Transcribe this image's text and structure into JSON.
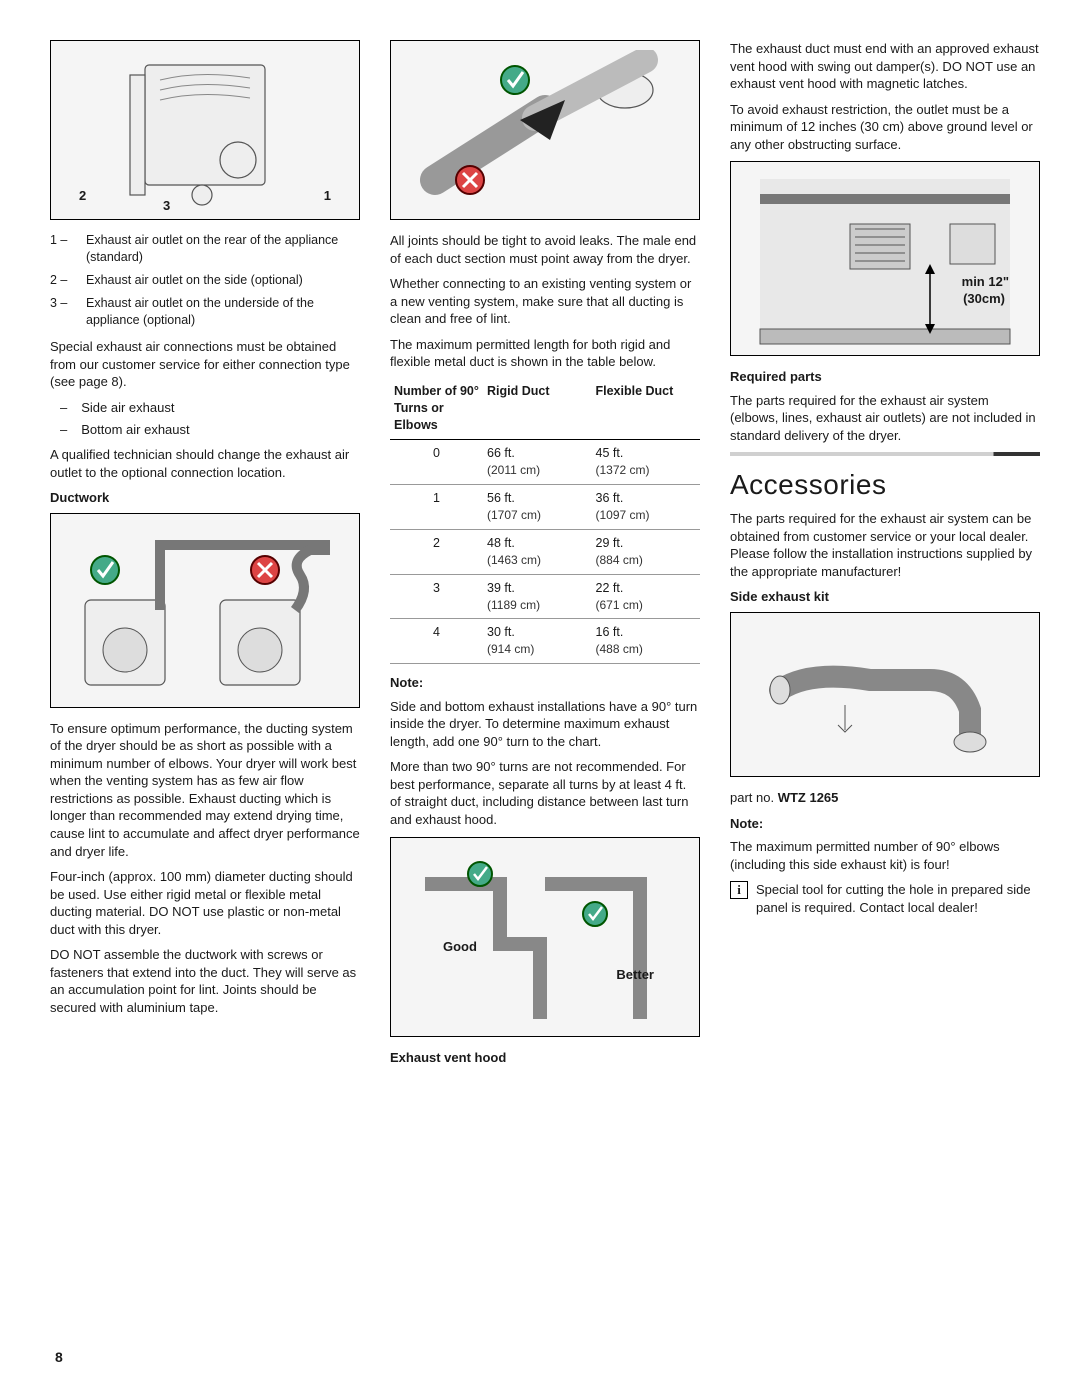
{
  "col1": {
    "fig1": {
      "labels": [
        "2",
        "3",
        "1"
      ]
    },
    "legend": [
      {
        "n": "1 –",
        "t": "Exhaust air outlet on the rear of the appliance (standard)"
      },
      {
        "n": "2 –",
        "t": "Exhaust air outlet on the side (optional)"
      },
      {
        "n": "3 –",
        "t": "Exhaust air outlet on the underside of the appliance (optional)"
      }
    ],
    "p1": "Special exhaust air connections must be obtained from our customer service for either connection type (see page 8).",
    "dash": [
      "Side air exhaust",
      "Bottom air exhaust"
    ],
    "p2": "A qualified technician should change the exhaust air outlet to the optional connection location.",
    "h_duct": "Ductwork",
    "p3": "To ensure optimum performance, the ducting system of the dryer should be as short as possible with a minimum number of elbows. Your dryer will work best when the venting system has as few air flow restrictions as possible. Exhaust ducting which is longer than recommended may extend drying time, cause lint to accumulate and affect dryer performance and dryer life.",
    "p4": "Four-inch (approx. 100 mm) diameter ducting should be used. Use either rigid metal or flexible metal ducting material. DO NOT use plastic or non-metal duct with this dryer.",
    "p5": "DO NOT assemble the ductwork with screws or fasteners that extend into the duct. They will serve as an accumulation point for lint. Joints should be secured with aluminium tape."
  },
  "col2": {
    "p1": "All joints should be tight to avoid leaks. The male end of each duct section must point away from the dryer.",
    "p2": "Whether connecting to an existing venting system or a new venting system, make sure that all ducting is clean and free of lint.",
    "p3": "The maximum permitted length for both rigid and flexible metal duct is shown in the table below.",
    "table": {
      "headers": [
        "Number of 90° Turns or Elbows",
        "Rigid Duct",
        "Flexible Duct"
      ],
      "rows": [
        {
          "n": "0",
          "r1": "66 ft.",
          "r2": "(2011 cm)",
          "f1": "45 ft.",
          "f2": "(1372 cm)"
        },
        {
          "n": "1",
          "r1": "56 ft.",
          "r2": "(1707 cm)",
          "f1": "36 ft.",
          "f2": "(1097 cm)"
        },
        {
          "n": "2",
          "r1": "48 ft.",
          "r2": "(1463 cm)",
          "f1": "29 ft.",
          "f2": "(884 cm)"
        },
        {
          "n": "3",
          "r1": "39 ft.",
          "r2": "(1189 cm)",
          "f1": "22 ft.",
          "f2": "(671 cm)"
        },
        {
          "n": "4",
          "r1": "30 ft.",
          "r2": "(914 cm)",
          "f1": "16 ft.",
          "f2": "(488 cm)"
        }
      ]
    },
    "note_h": "Note:",
    "note1": "Side and bottom exhaust installations have a 90° turn inside the dryer. To determine maximum exhaust length, add one 90° turn to the chart.",
    "note2": "More than two 90° turns are not recommended. For best performance, separate all turns by at least 4 ft. of straight duct, including distance between last turn and exhaust hood.",
    "fig_labels": {
      "good": "Good",
      "better": "Better"
    },
    "h_vent": "Exhaust vent hood"
  },
  "col3": {
    "p1": "The exhaust duct must end with an approved exhaust vent hood with swing out damper(s). DO NOT use an exhaust vent hood with magnetic latches.",
    "p2": "To avoid exhaust restriction, the outlet must be a minimum of 12 inches (30 cm) above ground level or any other obstructing surface.",
    "fig_label_a": "min 12\"",
    "fig_label_b": "(30cm)",
    "h_req": "Required parts",
    "p3": "The parts required for the exhaust air system (elbows, lines, exhaust air outlets) are not included in standard delivery of the dryer.",
    "h_acc": "Accessories",
    "p4": "The parts required for the exhaust air system can be obtained from customer service or your local dealer. Please follow the installation instructions supplied by the appropriate manufacturer!",
    "h_side": "Side exhaust kit",
    "part_pre": "part no. ",
    "part_no": "WTZ 1265",
    "note_h": "Note:",
    "p5": "The maximum permitted number of 90° elbows (including this side exhaust kit) is four!",
    "info": "Special tool for cutting the hole in prepared side panel is required. Contact local dealer!"
  },
  "pagenum": "8"
}
